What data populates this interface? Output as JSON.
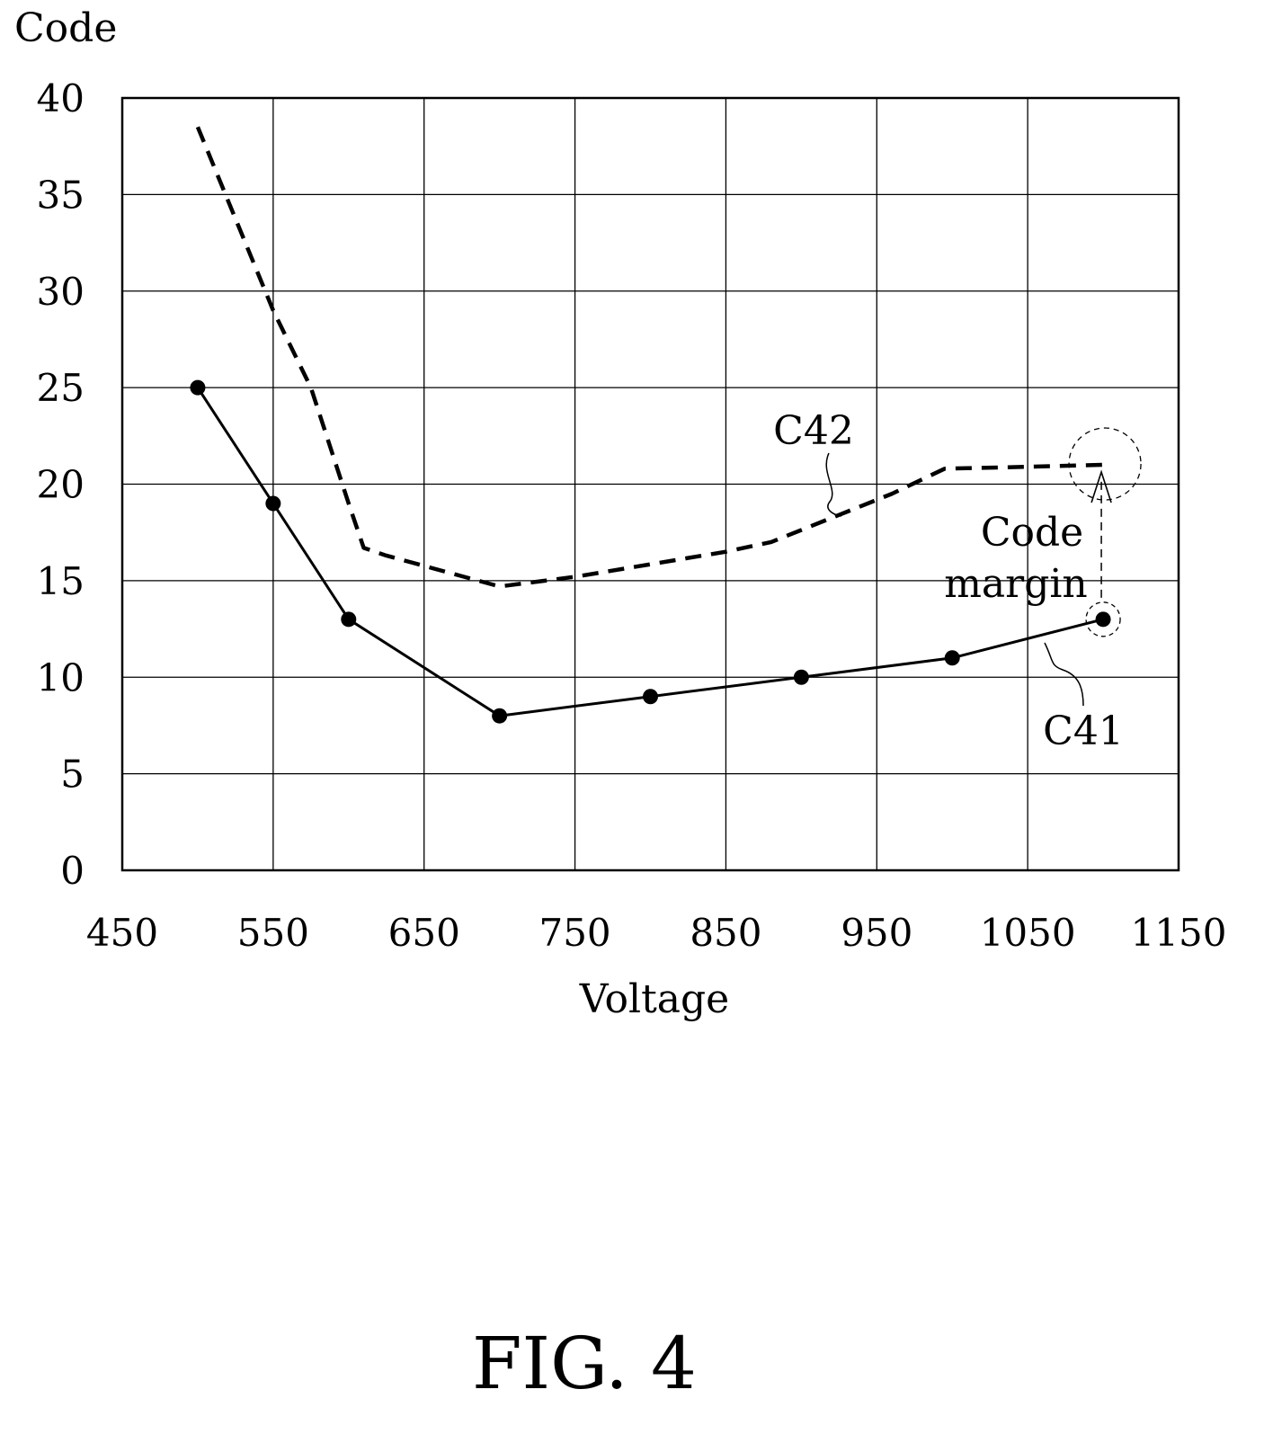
{
  "figure_label": "FIG. 4",
  "chart_data": {
    "type": "line",
    "ylabel": "Code",
    "xlabel": "Voltage",
    "xlim": [
      450,
      1150
    ],
    "ylim": [
      0,
      40
    ],
    "x_ticks": [
      450,
      550,
      650,
      750,
      850,
      950,
      1050,
      1150
    ],
    "y_ticks": [
      0,
      5,
      10,
      15,
      20,
      25,
      30,
      35,
      40
    ],
    "grid": true,
    "series": [
      {
        "name": "C41",
        "style": "solid",
        "markers": true,
        "x": [
          500,
          550,
          600,
          700,
          800,
          900,
          1000,
          1100
        ],
        "y": [
          25,
          19,
          13,
          8,
          9,
          10,
          11,
          13
        ]
      },
      {
        "name": "C42",
        "style": "dashed",
        "markers": false,
        "x": [
          500,
          550,
          575,
          600,
          610,
          625,
          700,
          750,
          850,
          880,
          960,
          995,
          1050,
          1100
        ],
        "y": [
          38.5,
          29,
          25,
          19,
          16.7,
          16.3,
          14.7,
          15.2,
          16.5,
          17,
          19.5,
          20.8,
          20.9,
          21
        ]
      }
    ],
    "annotations": {
      "margin_label_line1": "Code",
      "margin_label_line2": "margin"
    }
  }
}
